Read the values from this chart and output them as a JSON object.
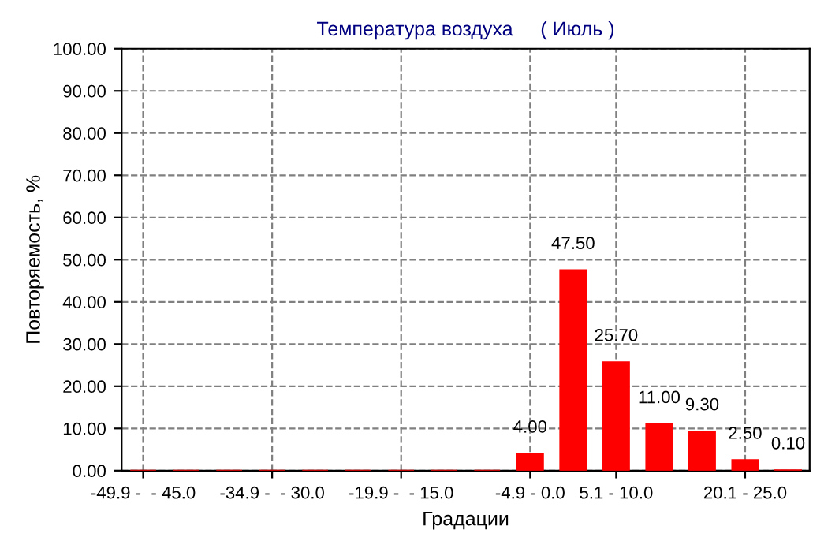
{
  "chart_data": {
    "type": "bar",
    "title": "Температура воздуха     ( Июль )",
    "xlabel": "Градации",
    "ylabel": "Повторяемость, %",
    "categories": [
      "-49.9 -  - 45.0",
      null,
      null,
      "-34.9 -  - 30.0",
      null,
      null,
      "-19.9 -  - 15.0",
      null,
      null,
      "-4.9 - 0.0",
      null,
      "5.1 - 10.0",
      null,
      null,
      "20.1 - 25.0",
      null
    ],
    "values": [
      0,
      0,
      0,
      0,
      0,
      0,
      0,
      0,
      0,
      4.0,
      47.5,
      25.7,
      11.0,
      9.3,
      2.5,
      0.1
    ],
    "value_labels": [
      null,
      null,
      null,
      null,
      null,
      null,
      null,
      null,
      null,
      "4.00",
      "47.50",
      "25.70",
      "11.00",
      "9.30",
      "2.50",
      "0.10"
    ],
    "color": "#ff0000",
    "ylim": [
      0,
      100
    ],
    "yticks": [
      {
        "value": 0,
        "label": "0.00"
      },
      {
        "value": 10,
        "label": "10.00"
      },
      {
        "value": 20,
        "label": "20.00"
      },
      {
        "value": 30,
        "label": "30.00"
      },
      {
        "value": 40,
        "label": "40.00"
      },
      {
        "value": 50,
        "label": "50.00"
      },
      {
        "value": 60,
        "label": "60.00"
      },
      {
        "value": 70,
        "label": "70.00"
      },
      {
        "value": 80,
        "label": "80.00"
      },
      {
        "value": 90,
        "label": "90.00"
      },
      {
        "value": 100,
        "label": "100.00"
      }
    ],
    "grid": true
  }
}
